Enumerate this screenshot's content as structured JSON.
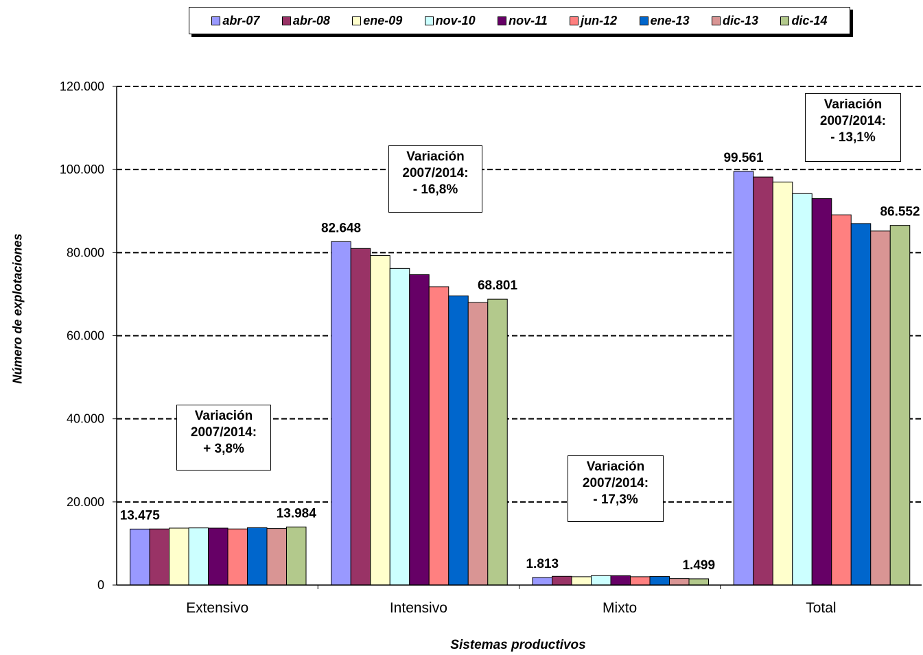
{
  "chart_data": {
    "type": "bar",
    "title": "",
    "xlabel": "Sistemas  productivos",
    "ylabel": "Número de explotaciones",
    "ylim": [
      0,
      120000
    ],
    "yticks": [
      0,
      20000,
      40000,
      60000,
      80000,
      100000,
      120000
    ],
    "ytick_labels": [
      "0",
      "20.000",
      "40.000",
      "60.000",
      "80.000",
      "100.000",
      "120.000"
    ],
    "grid": "horizontal dashed",
    "legend": "top",
    "categories": [
      "Extensivo",
      "Intensivo",
      "Mixto",
      "Total"
    ],
    "series": [
      {
        "name": "abr-07",
        "color": "#9999ff",
        "values": [
          13475,
          82648,
          1813,
          99561
        ]
      },
      {
        "name": "abr-08",
        "color": "#993366",
        "values": [
          13500,
          81000,
          2100,
          98200
        ]
      },
      {
        "name": "ene-09",
        "color": "#ffffcc",
        "values": [
          13700,
          79300,
          2000,
          97000
        ]
      },
      {
        "name": "nov-10",
        "color": "#ccffff",
        "values": [
          13750,
          76200,
          2250,
          94200
        ]
      },
      {
        "name": "nov-11",
        "color": "#660066",
        "values": [
          13700,
          74700,
          2250,
          93000
        ]
      },
      {
        "name": "jun-12",
        "color": "#ff8080",
        "values": [
          13500,
          71800,
          2000,
          89100
        ]
      },
      {
        "name": "ene-13",
        "color": "#0066cc",
        "values": [
          13800,
          69600,
          2050,
          87000
        ]
      },
      {
        "name": "dic-13",
        "color": "#d99594",
        "values": [
          13600,
          68000,
          1550,
          85200
        ]
      },
      {
        "name": "dic-14",
        "color": "#b3c98c",
        "values": [
          13984,
          68801,
          1499,
          86552
        ]
      }
    ],
    "data_labels": [
      {
        "category": 0,
        "series": 0,
        "text": "13.475"
      },
      {
        "category": 0,
        "series": 8,
        "text": "13.984"
      },
      {
        "category": 1,
        "series": 0,
        "text": "82.648"
      },
      {
        "category": 1,
        "series": 8,
        "text": "68.801"
      },
      {
        "category": 2,
        "series": 0,
        "text": "1.813"
      },
      {
        "category": 2,
        "series": 8,
        "text": "1.499"
      },
      {
        "category": 3,
        "series": 0,
        "text": "99.561"
      },
      {
        "category": 3,
        "series": 8,
        "text": "86.552"
      }
    ],
    "annotations": [
      {
        "lines": [
          "Variación",
          "2007/2014:",
          "+ 3,8%"
        ]
      },
      {
        "lines": [
          "Variación",
          "2007/2014:",
          "- 16,8%"
        ]
      },
      {
        "lines": [
          "Variación",
          "2007/2014:",
          "- 17,3%"
        ]
      },
      {
        "lines": [
          "Variación",
          "2007/2014:",
          "- 13,1%"
        ]
      }
    ]
  }
}
